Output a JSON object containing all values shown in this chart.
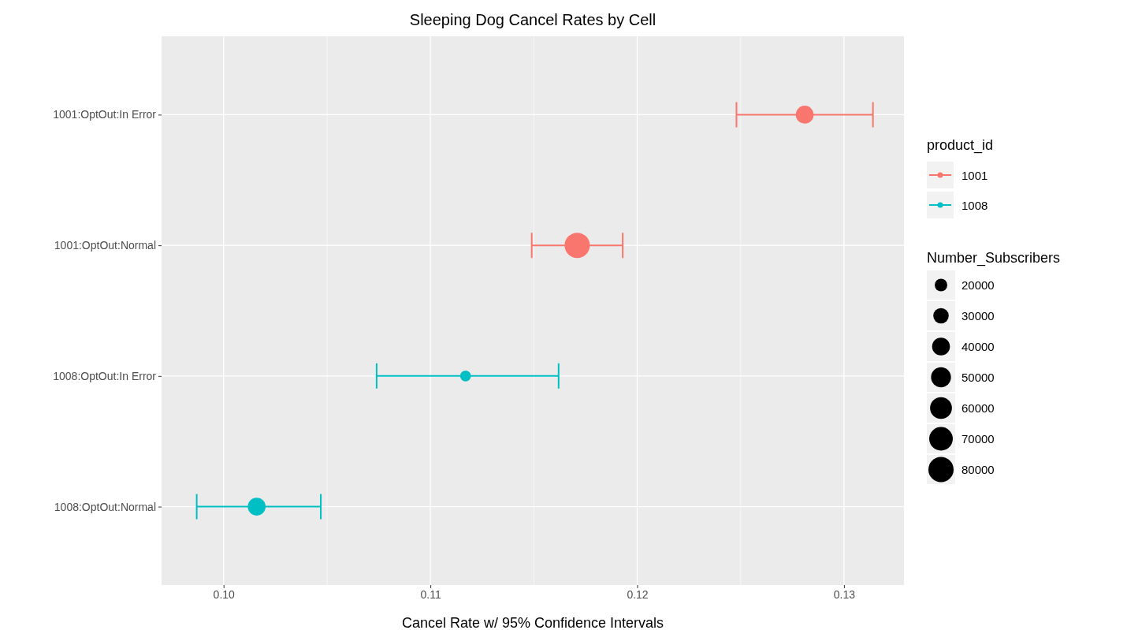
{
  "chart_data": {
    "type": "bubble",
    "orientation": "horizontal",
    "title": "Sleeping Dog Cancel Rates by Cell",
    "xlabel": "Cancel Rate w/ 95% Confidence Intervals",
    "categories": [
      "1001:OptOut:In Error",
      "1001:OptOut:Normal",
      "1008:OptOut:In Error",
      "1008:OptOut:Normal"
    ],
    "xlim": [
      0.097,
      0.1329
    ],
    "xticks": [
      {
        "value": 0.1,
        "label": "0.10"
      },
      0.11,
      0.12,
      0.13
    ],
    "grid": true,
    "legend": "right",
    "legend_title": "product_id",
    "marker": "circle",
    "size_legend": [
      20000,
      30000,
      40000,
      50000,
      60000,
      70000,
      80000
    ],
    "annotations": [
      "Number_Subscribers"
    ],
    "series": [
      {
        "name": "1001",
        "color": "#f8766d",
        "values": [
          0.1281,
          0.1171,
          null,
          null
        ],
        "errors": [
          [
            0.1248,
            0.1314
          ],
          [
            0.1149,
            0.1193
          ],
          null,
          null
        ],
        "sizes": [
          40000,
          80000,
          null,
          null
        ]
      },
      {
        "name": "1008",
        "color": "#00bfc4",
        "values": [
          null,
          null,
          0.1117,
          0.1016
        ],
        "errors": [
          null,
          null,
          [
            0.1074,
            0.1162
          ],
          [
            0.0987,
            0.1047
          ]
        ],
        "sizes": [
          null,
          null,
          15000,
          40000
        ]
      }
    ]
  }
}
